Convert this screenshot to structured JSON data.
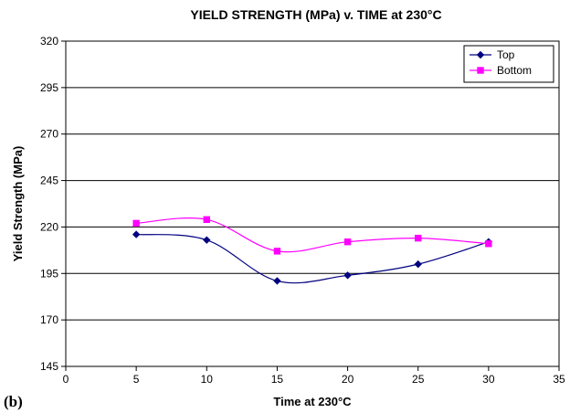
{
  "panel_label": "(b)",
  "chart_data": {
    "type": "line",
    "title": "YIELD STRENGTH (MPa) v. TIME at 230°C",
    "xlabel": "Time at 230°C",
    "ylabel": "Yield Strength (MPa)",
    "xlim": [
      0,
      35
    ],
    "ylim": [
      145,
      320
    ],
    "xticks": [
      0,
      5,
      10,
      15,
      20,
      25,
      30,
      35
    ],
    "yticks": [
      145,
      170,
      195,
      220,
      245,
      270,
      295,
      320
    ],
    "grid": "horizontal",
    "legend_position": "top-right",
    "smooth": true,
    "x": [
      5,
      10,
      15,
      20,
      25,
      30
    ],
    "series": [
      {
        "name": "Top",
        "values": [
          216,
          213,
          191,
          194,
          200,
          212
        ],
        "color": "#000080",
        "marker": "diamond"
      },
      {
        "name": "Bottom",
        "values": [
          222,
          224,
          207,
          212,
          214,
          211
        ],
        "color": "#ff00ff",
        "marker": "square"
      }
    ]
  }
}
